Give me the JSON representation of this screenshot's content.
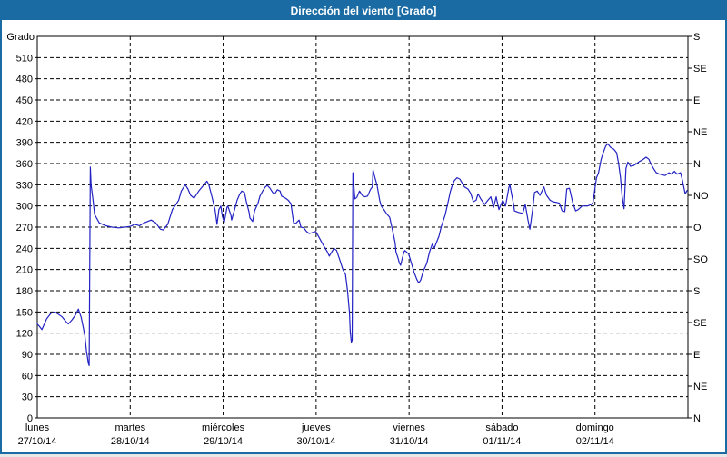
{
  "window": {
    "title": "Dirección del viento [Grado]"
  },
  "colors": {
    "frame": "#1a6ba4",
    "title_text": "#ffffff",
    "plot_background": "#ffffff",
    "grid": "#000000",
    "axis": "#000000",
    "line": "#2222c4",
    "tick_text": "#000000"
  },
  "chart_data": {
    "type": "line",
    "title": "Dirección del viento [Grado]",
    "grid": "dashed",
    "legend_position": "none",
    "y_left": {
      "label": "Grado",
      "min": 0,
      "max": 540,
      "tick_step": 30,
      "ticks": [
        0,
        30,
        60,
        90,
        120,
        150,
        180,
        210,
        240,
        270,
        300,
        330,
        360,
        390,
        420,
        450,
        480,
        510
      ]
    },
    "y_right": {
      "tick_step": 45,
      "ticks": [
        {
          "value": 540,
          "label": "S"
        },
        {
          "value": 495,
          "label": "SE"
        },
        {
          "value": 450,
          "label": "E"
        },
        {
          "value": 405,
          "label": "NE"
        },
        {
          "value": 360,
          "label": "N"
        },
        {
          "value": 315,
          "label": "NO"
        },
        {
          "value": 270,
          "label": "O"
        },
        {
          "value": 225,
          "label": "SO"
        },
        {
          "value": 180,
          "label": "S"
        },
        {
          "value": 135,
          "label": "SE"
        },
        {
          "value": 90,
          "label": "E"
        },
        {
          "value": 45,
          "label": "NE"
        },
        {
          "value": 0,
          "label": "N"
        }
      ]
    },
    "x": {
      "hours_total": 168,
      "days": [
        {
          "name": "lunes",
          "date": "27/10/14"
        },
        {
          "name": "martes",
          "date": "28/10/14"
        },
        {
          "name": "miércoles",
          "date": "29/10/14"
        },
        {
          "name": "jueves",
          "date": "30/10/14"
        },
        {
          "name": "viernes",
          "date": "31/10/14"
        },
        {
          "name": "sábado",
          "date": "01/11/14"
        },
        {
          "name": "domingo",
          "date": "02/11/14"
        }
      ]
    },
    "series": [
      {
        "name": "Dirección del viento",
        "unit": "grado",
        "points": [
          [
            0,
            133
          ],
          [
            0.5,
            130
          ],
          [
            1.2,
            125
          ],
          [
            2.4,
            140
          ],
          [
            3.5,
            148
          ],
          [
            4.5,
            150
          ],
          [
            5.4,
            147
          ],
          [
            6.4,
            143
          ],
          [
            7.3,
            137
          ],
          [
            8,
            133
          ],
          [
            9,
            139
          ],
          [
            9.9,
            146
          ],
          [
            10.6,
            154
          ],
          [
            11.3,
            143
          ],
          [
            11.8,
            130
          ],
          [
            12.3,
            116
          ],
          [
            12.7,
            95
          ],
          [
            13.2,
            77
          ],
          [
            13.4,
            74
          ],
          [
            13.7,
            355
          ],
          [
            13.9,
            330
          ],
          [
            14.4,
            308
          ],
          [
            14.8,
            288
          ],
          [
            16,
            276
          ],
          [
            17.7,
            272
          ],
          [
            19.3,
            270
          ],
          [
            21,
            269
          ],
          [
            22.6,
            270
          ],
          [
            24,
            271
          ],
          [
            25.2,
            274
          ],
          [
            26.4,
            272
          ],
          [
            27.6,
            276
          ],
          [
            29.4,
            280
          ],
          [
            30.6,
            276
          ],
          [
            31.8,
            267
          ],
          [
            32.5,
            266
          ],
          [
            33.7,
            274
          ],
          [
            34.9,
            295
          ],
          [
            35.8,
            302
          ],
          [
            36.5,
            308
          ],
          [
            37.2,
            321
          ],
          [
            38.2,
            330
          ],
          [
            38.9,
            324
          ],
          [
            39.6,
            315
          ],
          [
            40.5,
            311
          ],
          [
            41.7,
            321
          ],
          [
            42.9,
            329
          ],
          [
            43.8,
            335
          ],
          [
            44.3,
            330
          ],
          [
            45.2,
            311
          ],
          [
            45.9,
            295
          ],
          [
            46.4,
            274
          ],
          [
            46.9,
            295
          ],
          [
            47.4,
            300
          ],
          [
            47.8,
            285
          ],
          [
            48.3,
            277
          ],
          [
            49,
            298
          ],
          [
            49.2,
            300
          ],
          [
            50,
            287
          ],
          [
            50.2,
            280
          ],
          [
            51.1,
            298
          ],
          [
            51.6,
            308
          ],
          [
            52.3,
            317
          ],
          [
            52.8,
            321
          ],
          [
            53.5,
            319
          ],
          [
            54,
            306
          ],
          [
            54.7,
            291
          ],
          [
            54.9,
            283
          ],
          [
            55.6,
            278
          ],
          [
            56.1,
            293
          ],
          [
            57,
            304
          ],
          [
            57.5,
            314
          ],
          [
            58.2,
            321
          ],
          [
            58.9,
            327
          ],
          [
            59.4,
            329
          ],
          [
            60.1,
            325
          ],
          [
            60.8,
            319
          ],
          [
            61.3,
            317
          ],
          [
            62,
            323
          ],
          [
            62.7,
            321
          ],
          [
            63.1,
            314
          ],
          [
            64.1,
            311
          ],
          [
            64.8,
            308
          ],
          [
            65.5,
            303
          ],
          [
            66.2,
            276
          ],
          [
            66.7,
            275
          ],
          [
            67.6,
            280
          ],
          [
            68.1,
            270
          ],
          [
            68.8,
            269
          ],
          [
            69.5,
            264
          ],
          [
            70.2,
            261
          ],
          [
            70.9,
            262
          ],
          [
            71.9,
            264
          ],
          [
            72.6,
            257
          ],
          [
            73.7,
            246
          ],
          [
            74.9,
            235
          ],
          [
            75.4,
            229
          ],
          [
            76.6,
            240
          ],
          [
            77.3,
            237
          ],
          [
            78.2,
            222
          ],
          [
            78.9,
            210
          ],
          [
            79.6,
            203
          ],
          [
            80.1,
            180
          ],
          [
            80.6,
            150
          ],
          [
            80.8,
            122
          ],
          [
            81.1,
            107
          ],
          [
            81.3,
            110
          ],
          [
            81.5,
            347
          ],
          [
            82,
            310
          ],
          [
            82.5,
            312
          ],
          [
            83.2,
            321
          ],
          [
            83.9,
            315
          ],
          [
            84.6,
            313
          ],
          [
            85.3,
            314
          ],
          [
            86,
            323
          ],
          [
            86.5,
            327
          ],
          [
            86.7,
            351
          ],
          [
            87.2,
            340
          ],
          [
            87.7,
            330
          ],
          [
            88.4,
            308
          ],
          [
            88.8,
            300
          ],
          [
            89.5,
            295
          ],
          [
            90.2,
            289
          ],
          [
            91,
            284
          ],
          [
            91.4,
            274
          ],
          [
            91.9,
            261
          ],
          [
            92.4,
            248
          ],
          [
            92.6,
            235
          ],
          [
            93.1,
            227
          ],
          [
            93.5,
            219
          ],
          [
            93.8,
            216
          ],
          [
            94.2,
            225
          ],
          [
            94.7,
            235
          ],
          [
            94.9,
            237
          ],
          [
            95.9,
            232
          ],
          [
            96.6,
            219
          ],
          [
            97.3,
            206
          ],
          [
            98,
            196
          ],
          [
            98.5,
            191
          ],
          [
            99,
            195
          ],
          [
            99.7,
            208
          ],
          [
            100.6,
            219
          ],
          [
            101.3,
            235
          ],
          [
            102,
            246
          ],
          [
            102.5,
            240
          ],
          [
            103.2,
            250
          ],
          [
            103.7,
            257
          ],
          [
            104.4,
            272
          ],
          [
            105.3,
            287
          ],
          [
            106,
            304
          ],
          [
            106.7,
            321
          ],
          [
            107.2,
            330
          ],
          [
            107.7,
            336
          ],
          [
            108.4,
            340
          ],
          [
            109.1,
            338
          ],
          [
            110.3,
            327
          ],
          [
            111.2,
            324
          ],
          [
            111.9,
            318
          ],
          [
            112.6,
            306
          ],
          [
            113.3,
            308
          ],
          [
            113.8,
            317
          ],
          [
            114.5,
            310
          ],
          [
            115.5,
            302
          ],
          [
            116.2,
            307
          ],
          [
            117.1,
            313
          ],
          [
            117.8,
            298
          ],
          [
            118.5,
            313
          ],
          [
            119.2,
            295
          ],
          [
            120.2,
            308
          ],
          [
            120.9,
            300
          ],
          [
            121.8,
            327
          ],
          [
            122,
            330
          ],
          [
            123,
            302
          ],
          [
            123.2,
            293
          ],
          [
            124.2,
            291
          ],
          [
            124.9,
            290
          ],
          [
            125.3,
            289
          ],
          [
            126,
            302
          ],
          [
            126.7,
            280
          ],
          [
            127.2,
            267
          ],
          [
            127.9,
            295
          ],
          [
            128.4,
            319
          ],
          [
            129.1,
            321
          ],
          [
            129.8,
            315
          ],
          [
            130.8,
            327
          ],
          [
            131.5,
            315
          ],
          [
            132.4,
            308
          ],
          [
            133.1,
            306
          ],
          [
            134.1,
            305
          ],
          [
            134.8,
            304
          ],
          [
            135.5,
            293
          ],
          [
            136.2,
            292
          ],
          [
            136.7,
            324
          ],
          [
            137.4,
            325
          ],
          [
            138.3,
            304
          ],
          [
            139,
            293
          ],
          [
            139.7,
            295
          ],
          [
            140.7,
            300
          ],
          [
            141.4,
            300
          ],
          [
            142.1,
            300
          ],
          [
            143,
            302
          ],
          [
            143.5,
            305
          ],
          [
            144,
            325
          ],
          [
            144.4,
            340
          ],
          [
            144.9,
            347
          ],
          [
            145.6,
            366
          ],
          [
            146.1,
            375
          ],
          [
            146.8,
            385
          ],
          [
            147.3,
            388
          ],
          [
            148,
            383
          ],
          [
            148.9,
            380
          ],
          [
            149.6,
            375
          ],
          [
            150.1,
            360
          ],
          [
            150.6,
            340
          ],
          [
            151,
            315
          ],
          [
            151.5,
            296
          ],
          [
            152,
            353
          ],
          [
            152.5,
            362
          ],
          [
            153.2,
            356
          ],
          [
            153.9,
            357
          ],
          [
            154.8,
            360
          ],
          [
            155.5,
            363
          ],
          [
            156.2,
            365
          ],
          [
            157.2,
            369
          ],
          [
            157.9,
            366
          ],
          [
            158.4,
            360
          ],
          [
            159.1,
            353
          ],
          [
            159.8,
            347
          ],
          [
            160.7,
            345
          ],
          [
            161.4,
            344
          ],
          [
            162.1,
            343
          ],
          [
            163.1,
            347
          ],
          [
            163.8,
            345
          ],
          [
            164.5,
            349
          ],
          [
            165.2,
            345
          ],
          [
            166.1,
            347
          ],
          [
            166.6,
            336
          ],
          [
            167.3,
            317
          ],
          [
            167.8,
            322
          ]
        ]
      }
    ]
  }
}
